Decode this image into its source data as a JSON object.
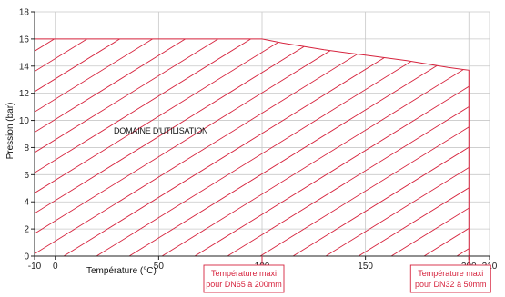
{
  "chart_data": {
    "type": "area",
    "xlabel": "Température (°C)",
    "ylabel": "Pression (bar)",
    "xlim": [
      -10,
      210
    ],
    "ylim": [
      0,
      18
    ],
    "x_ticks": [
      -10,
      0,
      50,
      100,
      150,
      200,
      210
    ],
    "y_ticks": [
      0,
      2,
      4,
      6,
      8,
      10,
      12,
      14,
      16,
      18
    ],
    "grid": true,
    "region": {
      "label": "DOMAINE D'UTILISATION",
      "fill": "hatched",
      "boundary": [
        {
          "x": -10,
          "y": 16
        },
        {
          "x": 100,
          "y": 16
        },
        {
          "x": 110,
          "y": 15.7
        },
        {
          "x": 130,
          "y": 15.2
        },
        {
          "x": 150,
          "y": 14.8
        },
        {
          "x": 170,
          "y": 14.4
        },
        {
          "x": 190,
          "y": 13.9
        },
        {
          "x": 200,
          "y": 13.7
        },
        {
          "x": 200,
          "y": 0
        },
        {
          "x": -10,
          "y": 0
        }
      ]
    },
    "annotations": [
      {
        "line1": "Température maxi",
        "line2": "pour DN65 à 200mm",
        "x": 100
      },
      {
        "line1": "Température maxi",
        "line2": "pour DN32 à 50mm",
        "x": 200
      }
    ],
    "colors": {
      "region": "#d6243e",
      "grid": "#c8c8c8",
      "axis": "#222222"
    }
  }
}
